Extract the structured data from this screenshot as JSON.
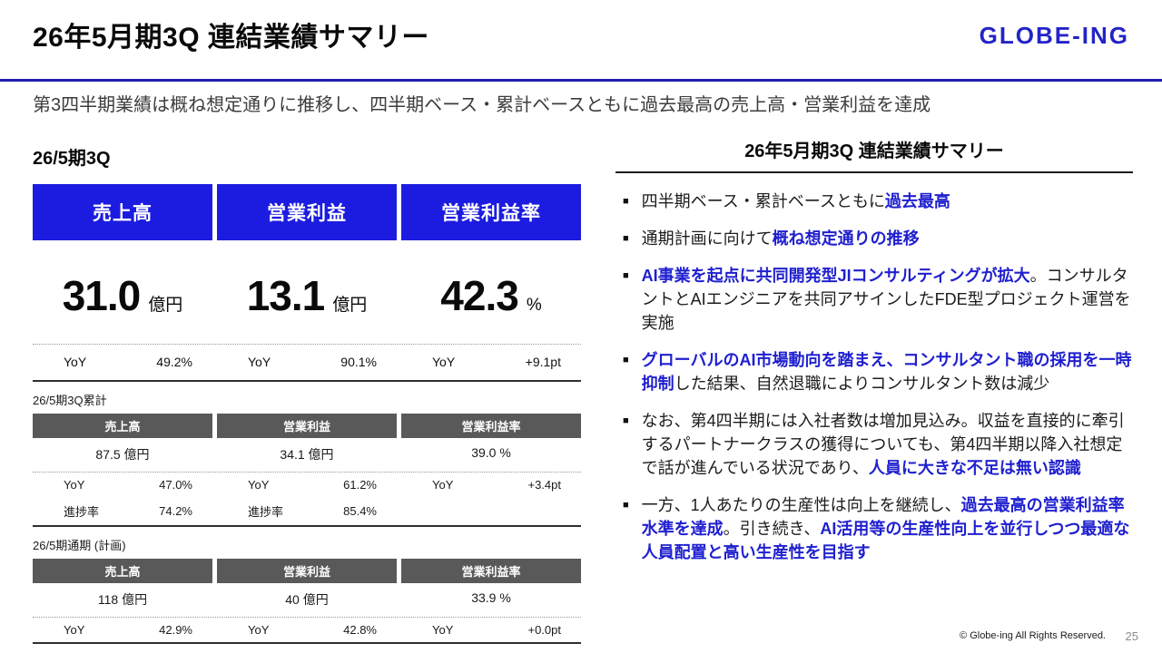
{
  "header": {
    "title": "26年5月期3Q 連結業績サマリー",
    "logo": "GLOBE-ING",
    "subtitle": "第3四半期業績は概ね想定通りに推移し、四半期ベース・累計ベースともに過去最高の売上高・営業利益を達成"
  },
  "left": {
    "heading": "26/5期3Q",
    "columns": [
      "売上高",
      "営業利益",
      "営業利益率"
    ],
    "hero": {
      "values": [
        "31.0",
        "13.1",
        "42.3"
      ],
      "units": [
        "億円",
        "億円",
        "%"
      ],
      "yoy_label": "YoY",
      "yoy": [
        "49.2%",
        "90.1%",
        "+9.1pt"
      ]
    },
    "cumulative": {
      "label": "26/5期3Q累計",
      "headers": [
        "売上高",
        "営業利益",
        "営業利益率"
      ],
      "values": [
        "87.5 億円",
        "34.1 億円",
        "39.0 %"
      ],
      "yoy_label": "YoY",
      "yoy": [
        "47.0%",
        "61.2%",
        "+3.4pt"
      ],
      "progress_label": "進捗率",
      "progress": [
        "74.2%",
        "85.4%",
        ""
      ]
    },
    "fullyear": {
      "label": "26/5期通期 (計画)",
      "headers": [
        "売上高",
        "営業利益",
        "営業利益率"
      ],
      "values": [
        "118 億円",
        "40 億円",
        "33.9 %"
      ],
      "yoy_label": "YoY",
      "yoy": [
        "42.9%",
        "42.8%",
        "+0.0pt"
      ]
    }
  },
  "right": {
    "title": "26年5月期3Q 連結業績サマリー",
    "bullets": [
      {
        "segments": [
          {
            "style": "normal",
            "text": "四半期ベース・累計ベースともに"
          },
          {
            "style": "em",
            "text": "過去最高"
          }
        ]
      },
      {
        "segments": [
          {
            "style": "normal",
            "text": "通期計画に向けて"
          },
          {
            "style": "em",
            "text": "概ね想定通りの推移"
          }
        ]
      },
      {
        "segments": [
          {
            "style": "em",
            "text": "AI事業を起点に共同開発型JIコンサルティングが拡大"
          },
          {
            "style": "normal",
            "text": "。コンサルタントとAIエンジニアを共同アサインしたFDE型プロジェクト運営を実施"
          }
        ]
      },
      {
        "segments": [
          {
            "style": "em",
            "text": "グローバルのAI市場動向を踏まえ、コンサルタント職の採用を一時抑制"
          },
          {
            "style": "normal",
            "text": "した結果、自然退職によりコンサルタント数は減少"
          }
        ]
      },
      {
        "segments": [
          {
            "style": "normal",
            "text": "なお、第4四半期には入社者数は増加見込み。収益を直接的に牽引するパートナークラスの獲得についても、第4四半期以降入社想定で話が進んでいる状況であり、"
          },
          {
            "style": "em",
            "text": "人員に大きな不足は無い認識"
          }
        ]
      },
      {
        "segments": [
          {
            "style": "normal",
            "text": "一方、1人あたりの生産性は向上を継続し、"
          },
          {
            "style": "em",
            "text": "過去最高の営業利益率水準を達成"
          },
          {
            "style": "normal",
            "text": "。引き続き、"
          },
          {
            "style": "em",
            "text": "AI活用等の生産性向上を並行しつつ最適な人員配置と高い生産性を目指す"
          }
        ]
      }
    ]
  },
  "footer": {
    "copyright": "© Globe-ing All Rights Reserved.",
    "page": "25"
  },
  "colors": {
    "accent_blue": "#1c1ce0",
    "logo_blue": "#2424c8",
    "rule_blue": "#1e1eb4",
    "em_blue": "#1f1fd0",
    "table_gray": "#595959"
  }
}
